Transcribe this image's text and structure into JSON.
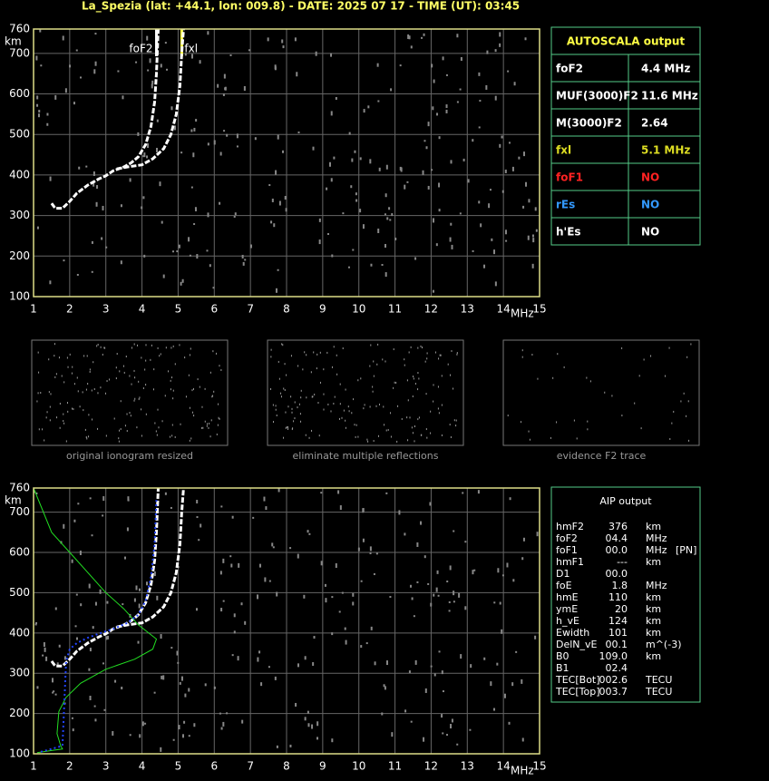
{
  "header": {
    "title": "La_Spezia (lat: +44.1, lon: 009.8) - DATE: 2025 07 17 - TIME (UT): 03:45"
  },
  "chart_data": [
    {
      "type": "line",
      "xlabel": "MHz",
      "ylabel": "km",
      "xlim": [
        1,
        15
      ],
      "ylim": [
        100,
        760
      ],
      "xticks": [
        1,
        2,
        3,
        4,
        5,
        6,
        7,
        8,
        9,
        10,
        11,
        12,
        13,
        14,
        15
      ],
      "yticks": [
        100,
        200,
        300,
        400,
        500,
        600,
        700,
        760
      ],
      "grid": true,
      "annotations": [
        {
          "text": "foF2",
          "x": 4.4,
          "color": "#ffffff"
        },
        {
          "text": "fxl",
          "x": 5.1,
          "color": "#ffff44"
        }
      ],
      "series": [
        {
          "color": "#ffffff",
          "style": "dash",
          "x": [
            1.5,
            1.6,
            1.8,
            2.0,
            2.2,
            2.5,
            2.8,
            3.0,
            3.2,
            3.5,
            3.7,
            3.9,
            4.1,
            4.25,
            4.35,
            4.4,
            4.45
          ],
          "values": [
            330,
            318,
            318,
            335,
            355,
            375,
            390,
            398,
            410,
            420,
            430,
            445,
            475,
            520,
            580,
            650,
            760
          ]
        },
        {
          "color": "#ffffff",
          "style": "dash",
          "x": [
            3.3,
            3.6,
            4.0,
            4.3,
            4.6,
            4.8,
            4.95,
            5.05,
            5.1,
            5.15
          ],
          "values": [
            415,
            420,
            425,
            440,
            465,
            500,
            550,
            620,
            700,
            760
          ]
        }
      ]
    },
    {
      "type": "line",
      "xlabel": "MHz",
      "ylabel": "km",
      "xlim": [
        1,
        15
      ],
      "ylim": [
        100,
        760
      ],
      "xticks": [
        1,
        2,
        3,
        4,
        5,
        6,
        7,
        8,
        9,
        10,
        11,
        12,
        13,
        14,
        15
      ],
      "yticks": [
        100,
        200,
        300,
        400,
        500,
        600,
        700,
        760
      ],
      "grid": true,
      "series": [
        {
          "color": "#ffffff",
          "style": "dash",
          "x": [
            1.5,
            1.6,
            1.8,
            2.0,
            2.2,
            2.5,
            2.8,
            3.0,
            3.2,
            3.5,
            3.7,
            3.9,
            4.1,
            4.25,
            4.35,
            4.4,
            4.45
          ],
          "values": [
            330,
            318,
            318,
            335,
            355,
            375,
            390,
            398,
            410,
            420,
            430,
            445,
            475,
            520,
            580,
            650,
            760
          ]
        },
        {
          "color": "#ffffff",
          "style": "dash",
          "x": [
            3.3,
            3.6,
            4.0,
            4.3,
            4.6,
            4.8,
            4.95,
            5.05,
            5.1,
            5.15
          ],
          "values": [
            415,
            420,
            425,
            440,
            465,
            500,
            550,
            620,
            700,
            760
          ]
        },
        {
          "color": "#22dd22",
          "style": "solid",
          "x": [
            1.0,
            1.5,
            2.0,
            2.5,
            3.0,
            3.5,
            3.9,
            4.4,
            4.3,
            3.8,
            3.0,
            2.3,
            1.9,
            1.7,
            1.65,
            1.75,
            1.8,
            1.5,
            1.1
          ],
          "values": [
            760,
            650,
            600,
            550,
            500,
            460,
            420,
            385,
            360,
            335,
            310,
            275,
            240,
            205,
            150,
            120,
            112,
            108,
            103
          ]
        },
        {
          "color": "#2244ff",
          "style": "dot",
          "x": [
            1.2,
            1.5,
            1.8,
            1.9,
            2.0,
            2.2,
            2.5,
            2.8,
            3.2,
            3.6,
            3.9,
            4.1,
            4.25,
            4.35,
            4.4
          ],
          "values": [
            105,
            112,
            120,
            330,
            360,
            375,
            388,
            398,
            410,
            425,
            445,
            480,
            540,
            620,
            730
          ]
        }
      ]
    }
  ],
  "thumbnails": [
    {
      "caption": "original ionogram resized"
    },
    {
      "caption": "eliminate multiple reflections"
    },
    {
      "caption": "evidence F2 trace"
    }
  ],
  "autoscala": {
    "title": "AUTOSCALA output",
    "rows": [
      {
        "name": "foF2",
        "value": "4.4 MHz",
        "color": "#ffffff"
      },
      {
        "name": "MUF(3000)F2",
        "value": "11.6 MHz",
        "color": "#ffffff"
      },
      {
        "name": "M(3000)F2",
        "value": "2.64",
        "color": "#ffffff"
      },
      {
        "name": "fxl",
        "value": "5.1 MHz",
        "color": "#dddd22"
      },
      {
        "name": "foF1",
        "value": "NO",
        "color": "#ff2222"
      },
      {
        "name": "rEs",
        "value": "NO",
        "color": "#3399ff"
      },
      {
        "name": "h'Es",
        "value": "NO",
        "color": "#ffffff"
      }
    ]
  },
  "aip": {
    "title": "AIP output",
    "rows": [
      [
        "hmF2",
        "376",
        "km"
      ],
      [
        "foF2",
        "04.4",
        "MHz"
      ],
      [
        "foF1",
        "00.0",
        "MHz",
        "[PN]"
      ],
      [
        "hmF1",
        "---",
        "km"
      ],
      [
        "D1",
        "00.0"
      ],
      [
        "foE",
        "1.8",
        "MHz"
      ],
      [
        "hmE",
        "110",
        "km"
      ],
      [
        "ymE",
        "20",
        "km"
      ],
      [
        "h_vE",
        "124",
        "km"
      ],
      [
        "Ewidth",
        "101",
        "km"
      ],
      [
        "DelN_vE",
        "00.1",
        "m^(-3)"
      ],
      [
        "B0",
        "109.0",
        "km"
      ],
      [
        "B1",
        "02.4"
      ],
      [
        "TEC[Bot]",
        "002.6",
        "TECU"
      ],
      [
        "TEC[Top]",
        "003.7",
        "TECU"
      ]
    ]
  }
}
